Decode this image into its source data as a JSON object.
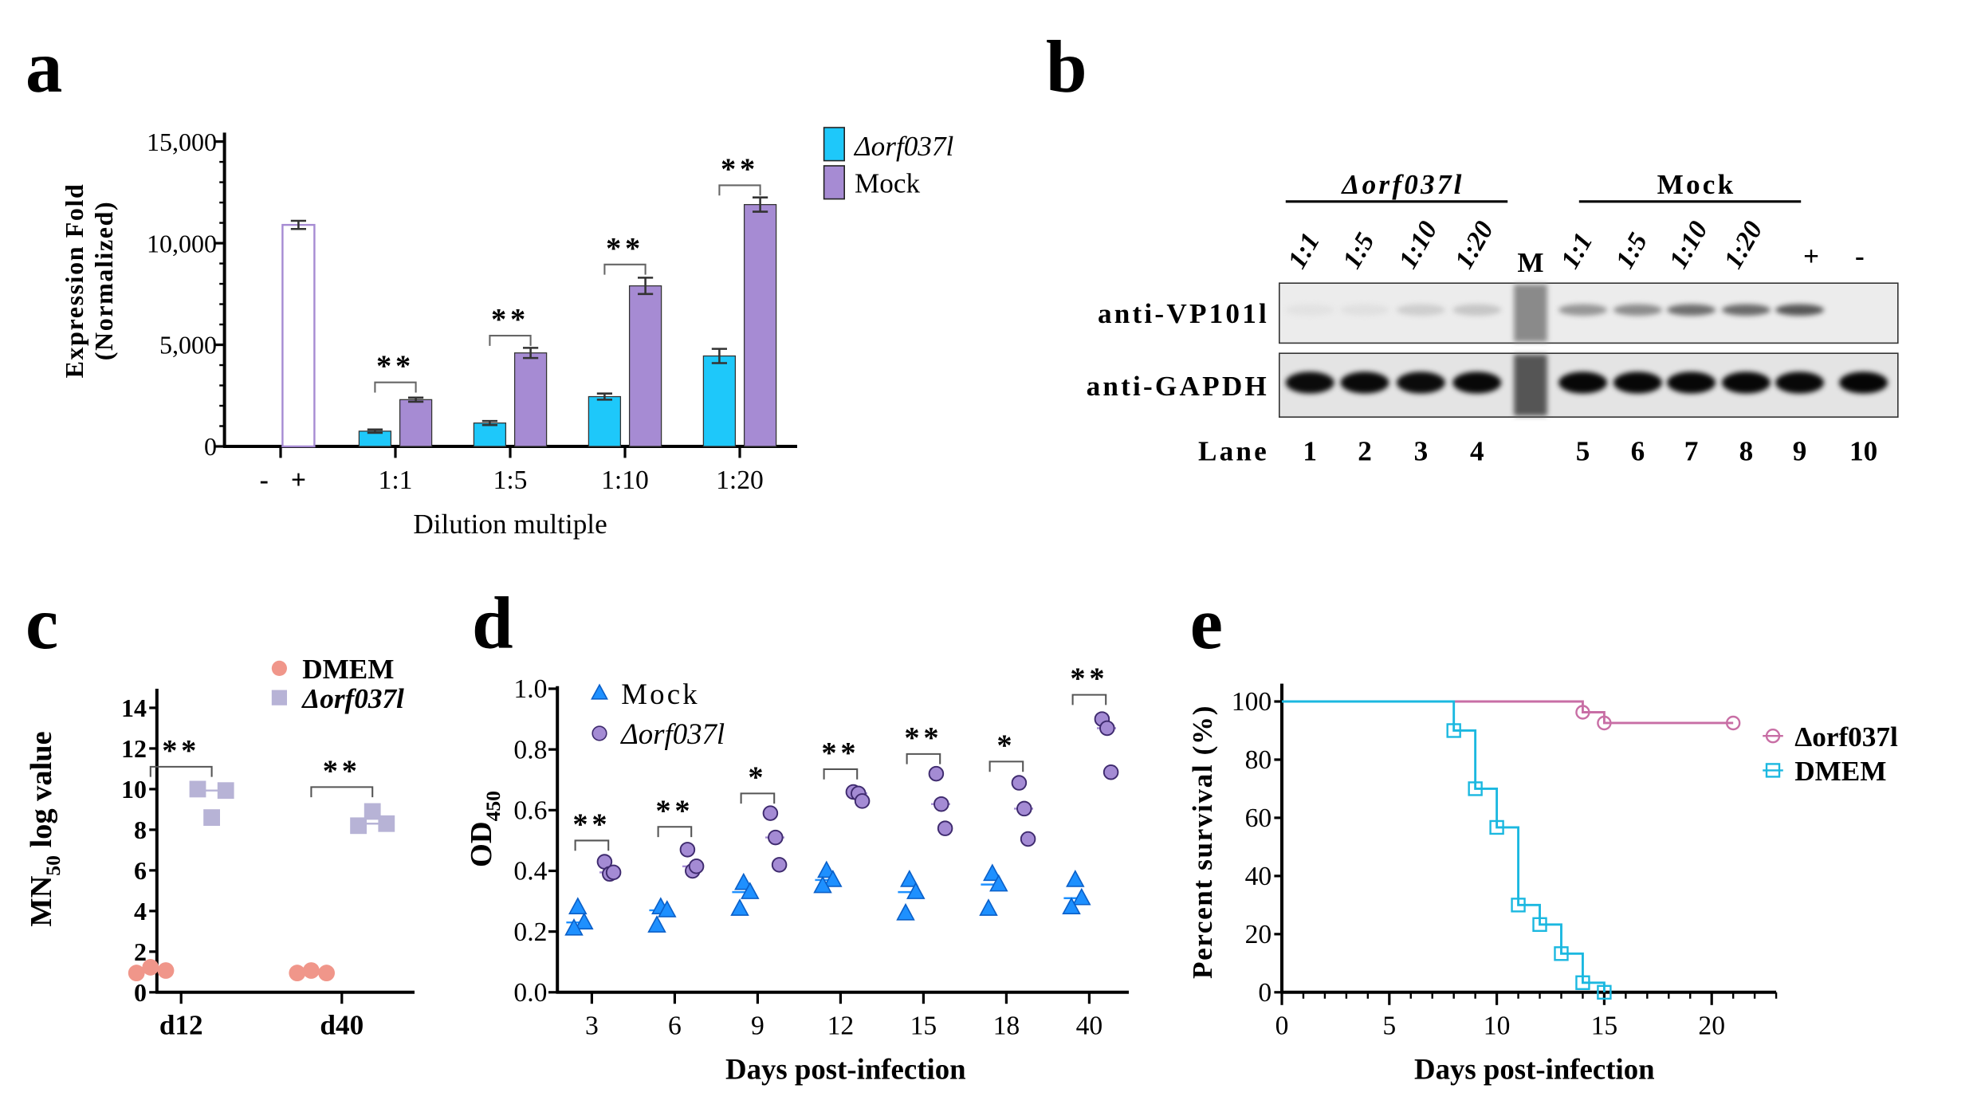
{
  "panels": {
    "a": "a",
    "b": "b",
    "c": "c",
    "d": "d",
    "e": "e"
  },
  "chart_data": [
    {
      "panel": "a",
      "type": "bar",
      "categories": [
        "-",
        "+",
        "1:1",
        "1:5",
        "1:10",
        "1:20"
      ],
      "controls": {
        "-": null,
        "+": {
          "value": 10900,
          "error": 200
        }
      },
      "series": [
        {
          "name": "Δorf037l",
          "color": "#1ec8fa",
          "values": [
            null,
            null,
            750,
            1150,
            2450,
            4450
          ],
          "errors": [
            null,
            null,
            80,
            100,
            150,
            350
          ]
        },
        {
          "name": "Mock",
          "color": "#a68bd3",
          "values": [
            null,
            null,
            2300,
            4600,
            7900,
            11900
          ],
          "errors": [
            null,
            null,
            100,
            250,
            400,
            350
          ]
        }
      ],
      "significance": [
        {
          "category": "1:1",
          "label": "**",
          "y": 3150
        },
        {
          "category": "1:5",
          "label": "**",
          "y": 5450
        },
        {
          "category": "1:10",
          "label": "**",
          "y": 8950
        },
        {
          "category": "1:20",
          "label": "**",
          "y": 12850
        }
      ],
      "yticks": [
        0,
        5000,
        10000,
        15000
      ],
      "ytick_labels": [
        "0",
        "5,000",
        "10,000",
        "15,000"
      ],
      "ylim": [
        0,
        15000
      ],
      "ylabel_lines": [
        "Expression Fold",
        "(Normalized)"
      ],
      "xlabel": "Dilution multiple",
      "legend_placement": "top-right"
    },
    {
      "panel": "c",
      "type": "scatter",
      "categories": [
        "d12",
        "d40"
      ],
      "series": [
        {
          "name": "DMEM",
          "color": "#f0968a",
          "marker": "circle",
          "values": [
            [
              0.95,
              1.23,
              1.07
            ],
            [
              0.95,
              1.07,
              0.95
            ]
          ]
        },
        {
          "name": "Δorf037l",
          "color": "#b7b3d6",
          "marker": "square",
          "values": [
            [
              10.0,
              8.6,
              9.93
            ],
            [
              8.2,
              8.9,
              8.3
            ]
          ]
        }
      ],
      "significance": [
        {
          "category": "d12",
          "label": "**",
          "y": 11.1
        },
        {
          "category": "d40",
          "label": "**",
          "y": 10.1
        }
      ],
      "yticks": [
        0,
        2,
        4,
        6,
        8,
        10,
        12,
        14
      ],
      "ylim": [
        0,
        15
      ],
      "ylabel": {
        "main": "MN",
        "sub": "50",
        "rest": " log value"
      },
      "xlabel": "",
      "legend_placement": "top-right"
    },
    {
      "panel": "d",
      "type": "scatter",
      "categories": [
        "3",
        "6",
        "9",
        "12",
        "15",
        "18",
        "40"
      ],
      "series": [
        {
          "name": "Mock",
          "color": "#1e90ff",
          "marker": "triangle",
          "values": [
            [
              0.28,
              0.23,
              0.21
            ],
            [
              0.28,
              0.27,
              0.22
            ],
            [
              0.36,
              0.33,
              0.275
            ],
            [
              0.4,
              0.37,
              0.35
            ],
            [
              0.37,
              0.33,
              0.26
            ],
            [
              0.39,
              0.355,
              0.275
            ],
            [
              0.37,
              0.31,
              0.28
            ]
          ]
        },
        {
          "name": "Δorf037l",
          "color": "#a48bd4",
          "marker": "circle",
          "values": [
            [
              0.43,
              0.39,
              0.395
            ],
            [
              0.47,
              0.4,
              0.415
            ],
            [
              0.59,
              0.51,
              0.42
            ],
            [
              0.66,
              0.655,
              0.63
            ],
            [
              0.72,
              0.62,
              0.54
            ],
            [
              0.69,
              0.605,
              0.505
            ],
            [
              0.9,
              0.87,
              0.725
            ]
          ]
        }
      ],
      "significance": [
        {
          "category": "3",
          "label": "**",
          "y": 0.5
        },
        {
          "category": "6",
          "label": "**",
          "y": 0.545
        },
        {
          "category": "9",
          "label": "*",
          "y": 0.655
        },
        {
          "category": "12",
          "label": "**",
          "y": 0.735
        },
        {
          "category": "15",
          "label": "**",
          "y": 0.785
        },
        {
          "category": "18",
          "label": "*",
          "y": 0.76
        },
        {
          "category": "40",
          "label": "**",
          "y": 0.98
        }
      ],
      "yticks": [
        0.0,
        0.2,
        0.4,
        0.6,
        0.8,
        1.0
      ],
      "ytick_labels": [
        "0.0",
        "0.2",
        "0.4",
        "0.6",
        "0.8",
        "1.0"
      ],
      "ylim": [
        0,
        1.0
      ],
      "ylabel": {
        "main": "OD",
        "sub": "450"
      },
      "xlabel": "Days post-infection",
      "legend_placement": "top-left"
    },
    {
      "panel": "e",
      "type": "line",
      "series": [
        {
          "name": "Δorf037l",
          "color": "#c86ea5",
          "marker": "circle",
          "steps": [
            [
              0,
              100
            ],
            [
              14,
              96.3
            ],
            [
              15,
              92.6
            ],
            [
              21,
              92.6
            ]
          ],
          "censored": [
            [
              14,
              96.3
            ],
            [
              15,
              92.6
            ],
            [
              21,
              92.6
            ]
          ]
        },
        {
          "name": "DMEM",
          "color": "#1bb8e0",
          "marker": "square",
          "steps": [
            [
              0,
              100
            ],
            [
              8,
              90
            ],
            [
              9,
              70
            ],
            [
              10,
              56.7
            ],
            [
              11,
              30
            ],
            [
              12,
              23.3
            ],
            [
              13,
              13.3
            ],
            [
              14,
              3.3
            ],
            [
              15,
              0
            ]
          ],
          "censored": [
            [
              8,
              90
            ],
            [
              9,
              70
            ],
            [
              10,
              56.7
            ],
            [
              11,
              30
            ],
            [
              12,
              23.3
            ],
            [
              13,
              13.3
            ],
            [
              14,
              3.3
            ],
            [
              15,
              0
            ]
          ]
        }
      ],
      "xticks": [
        0,
        5,
        10,
        15,
        20
      ],
      "xlim": [
        0,
        23
      ],
      "yticks": [
        0,
        20,
        40,
        60,
        80,
        100
      ],
      "ylim": [
        0,
        100
      ],
      "xlabel": "Days post-infection",
      "ylabel": "Percent survival (%)",
      "legend_placement": "right"
    }
  ],
  "blot": {
    "group_labels": [
      "Δorf037l",
      "Mock"
    ],
    "lane_headers": [
      "1:1",
      "1:5",
      "1:10",
      "1:20",
      "M",
      "1:1",
      "1:5",
      "1:10",
      "1:20",
      "+",
      "-"
    ],
    "row_labels": [
      "anti-VP101l",
      "anti-GAPDH"
    ],
    "lane_title": "Lane",
    "lane_numbers": [
      "1",
      "2",
      "3",
      "4",
      "",
      "5",
      "6",
      "7",
      "8",
      "9",
      "10"
    ],
    "vp101l_band_intensity": [
      0.02,
      0.03,
      0.12,
      0.16,
      null,
      0.4,
      0.45,
      0.6,
      0.62,
      0.72,
      0.0
    ],
    "gapdh_band_intensity": [
      0.9,
      0.92,
      0.9,
      0.95,
      null,
      0.97,
      0.97,
      0.96,
      0.97,
      0.95,
      1.0
    ]
  }
}
